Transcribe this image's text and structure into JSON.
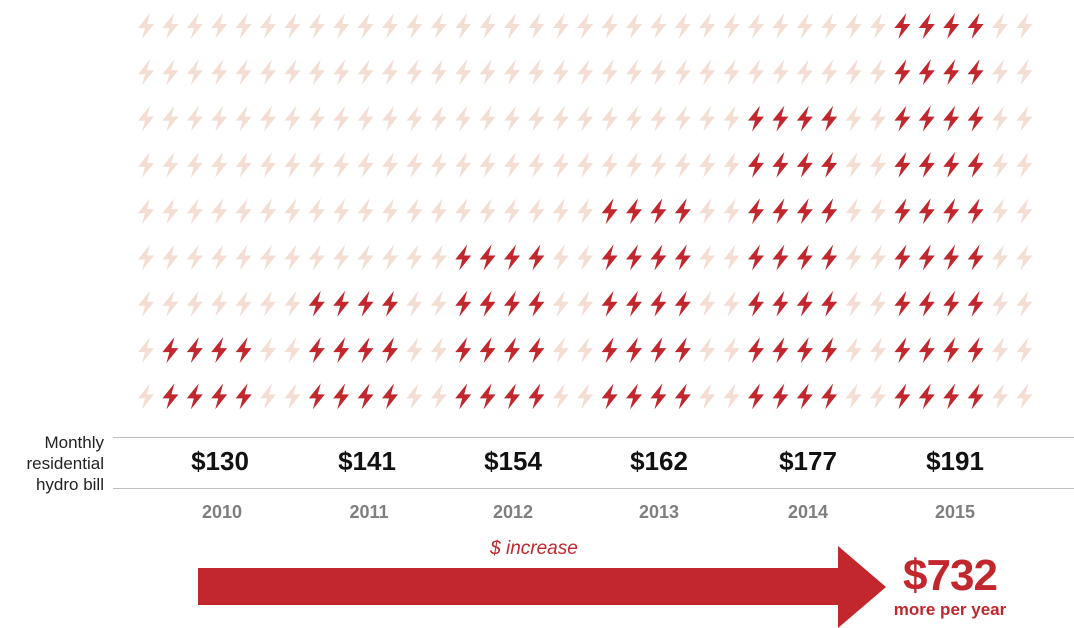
{
  "chart_data": {
    "type": "bar",
    "representation": "pictograph",
    "icon": "lightning-bolt-icon",
    "categories": [
      "2010",
      "2011",
      "2012",
      "2013",
      "2014",
      "2015"
    ],
    "values": [
      130,
      141,
      154,
      162,
      177,
      191
    ],
    "value_labels": [
      "$130",
      "$141",
      "$154",
      "$162",
      "$177",
      "$191"
    ],
    "filled_icon_rows": [
      2,
      3,
      4,
      5,
      7,
      9
    ],
    "total_icon_rows": 9,
    "icons_per_group": 4,
    "row_label": [
      "Monthly",
      "residential",
      "hydro bill"
    ],
    "increase_label": "$ increase",
    "total_increase": "$732",
    "total_caption": "more per year"
  },
  "colors": {
    "filled": "#c1272d",
    "background_icon": "#f4ddd3",
    "rule": "#bdbdbd",
    "year": "#7f7f7f"
  }
}
